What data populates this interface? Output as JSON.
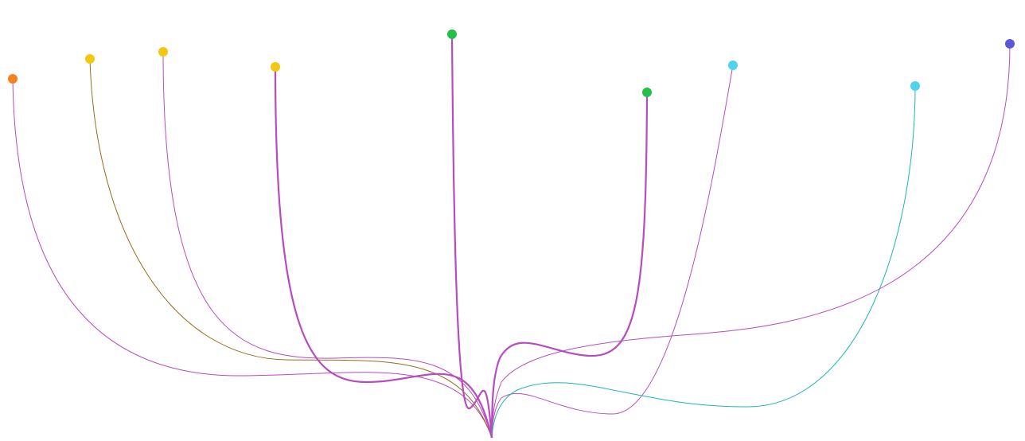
{
  "nodes": [
    {
      "color": "#f5821f",
      "link_color": "#b64cc0"
    },
    {
      "color": "#f2c811",
      "link_color": "#9a6b1a"
    },
    {
      "color": "#f2c811",
      "link_color": "#b64cc0"
    },
    {
      "color": "#f2c811",
      "link_color": "#b64cc0"
    },
    {
      "color": "#22c04a",
      "link_color": "#b64cc0"
    },
    {
      "color": "#22c04a",
      "link_color": "#b64cc0"
    },
    {
      "color": "#4fd3ef",
      "link_color": "#b64cc0"
    },
    {
      "color": "#4fd3ef",
      "link_color": "#1fb5b5"
    },
    {
      "color": "#5b57d6",
      "link_color": "#b64cc0"
    }
  ]
}
